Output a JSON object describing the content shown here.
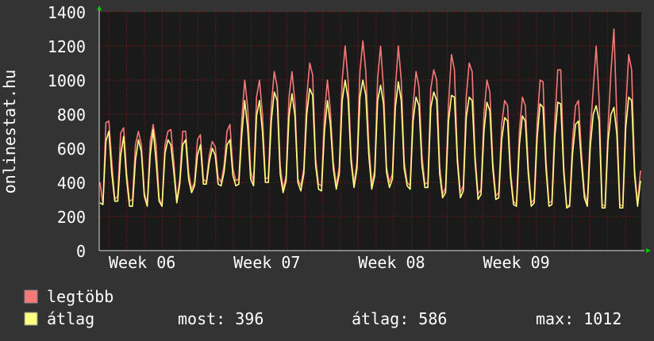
{
  "chart_data": {
    "type": "line",
    "title": "",
    "ylabel": "onlinestat.hu",
    "xlabel": "",
    "ylim": [
      0,
      1400
    ],
    "yticks": [
      0,
      200,
      400,
      600,
      800,
      1000,
      1200,
      1400
    ],
    "xticks": [
      "Week 06",
      "Week 07",
      "Week 08",
      "Week 09"
    ],
    "grid": true,
    "colors": {
      "background": "#333333",
      "plot": "#1a1a1a",
      "grid": "#8b1a1a",
      "axis": "#dddddd",
      "text": "#ffffff",
      "arrow": "#00cc00"
    },
    "series": [
      {
        "name": "legtöbb",
        "color": "#f87878",
        "values": [
          400,
          270,
          750,
          760,
          520,
          300,
          320,
          690,
          720,
          460,
          290,
          300,
          620,
          700,
          620,
          340,
          270,
          640,
          740,
          620,
          310,
          260,
          620,
          700,
          710,
          520,
          290,
          420,
          700,
          700,
          460,
          360,
          400,
          650,
          680,
          420,
          400,
          560,
          640,
          610,
          430,
          400,
          500,
          700,
          740,
          480,
          410,
          420,
          770,
          1000,
          840,
          470,
          400,
          900,
          1000,
          800,
          420,
          430,
          850,
          1050,
          960,
          500,
          360,
          440,
          900,
          1050,
          870,
          420,
          380,
          480,
          900,
          1100,
          1030,
          540,
          390,
          380,
          800,
          1000,
          820,
          520,
          380,
          490,
          1000,
          1200,
          1000,
          560,
          390,
          520,
          1050,
          1230,
          1050,
          630,
          390,
          470,
          1010,
          1200,
          950,
          490,
          400,
          450,
          950,
          1200,
          1000,
          520,
          400,
          380,
          850,
          1050,
          960,
          560,
          390,
          400,
          950,
          1060,
          1000,
          500,
          330,
          370,
          860,
          1150,
          1060,
          560,
          340,
          380,
          900,
          1100,
          1050,
          560,
          330,
          360,
          800,
          1000,
          930,
          520,
          320,
          340,
          740,
          880,
          850,
          470,
          290,
          270,
          700,
          900,
          850,
          490,
          280,
          300,
          750,
          1000,
          990,
          530,
          280,
          290,
          760,
          1060,
          1060,
          500,
          260,
          270,
          650,
          850,
          880,
          580,
          340,
          280,
          700,
          950,
          1200,
          880,
          270,
          260,
          720,
          1050,
          1300,
          780,
          270,
          260,
          820,
          1150,
          1060,
          480,
          270,
          470
        ]
      },
      {
        "name": "átlag",
        "color": "#ffff80",
        "values": [
          280,
          270,
          640,
          700,
          450,
          290,
          290,
          560,
          670,
          420,
          260,
          260,
          530,
          650,
          580,
          320,
          260,
          560,
          710,
          520,
          290,
          260,
          570,
          650,
          620,
          460,
          280,
          390,
          620,
          650,
          420,
          340,
          380,
          560,
          620,
          390,
          390,
          520,
          600,
          560,
          390,
          380,
          460,
          620,
          650,
          440,
          380,
          390,
          680,
          880,
          720,
          420,
          380,
          790,
          880,
          700,
          400,
          400,
          760,
          930,
          880,
          450,
          340,
          410,
          790,
          920,
          790,
          400,
          350,
          450,
          800,
          950,
          910,
          500,
          360,
          350,
          700,
          880,
          740,
          480,
          360,
          450,
          880,
          1000,
          890,
          520,
          370,
          480,
          900,
          1000,
          910,
          560,
          360,
          440,
          880,
          970,
          860,
          460,
          370,
          420,
          840,
          990,
          880,
          480,
          380,
          360,
          760,
          900,
          850,
          500,
          370,
          370,
          840,
          930,
          880,
          450,
          310,
          340,
          760,
          910,
          900,
          520,
          310,
          350,
          780,
          900,
          880,
          520,
          300,
          330,
          700,
          870,
          820,
          480,
          300,
          310,
          650,
          780,
          760,
          430,
          270,
          260,
          620,
          790,
          760,
          450,
          260,
          280,
          660,
          860,
          840,
          480,
          260,
          270,
          670,
          870,
          860,
          460,
          250,
          260,
          570,
          740,
          760,
          520,
          310,
          260,
          610,
          800,
          850,
          760,
          250,
          250,
          640,
          800,
          840,
          680,
          250,
          250,
          720,
          900,
          880,
          440,
          260,
          410
        ]
      }
    ],
    "stats": {
      "most_label": "most:",
      "most_value": "396",
      "atlag_label": "átlag:",
      "atlag_value": "586",
      "max_label": "max:",
      "max_value": "1012"
    }
  }
}
